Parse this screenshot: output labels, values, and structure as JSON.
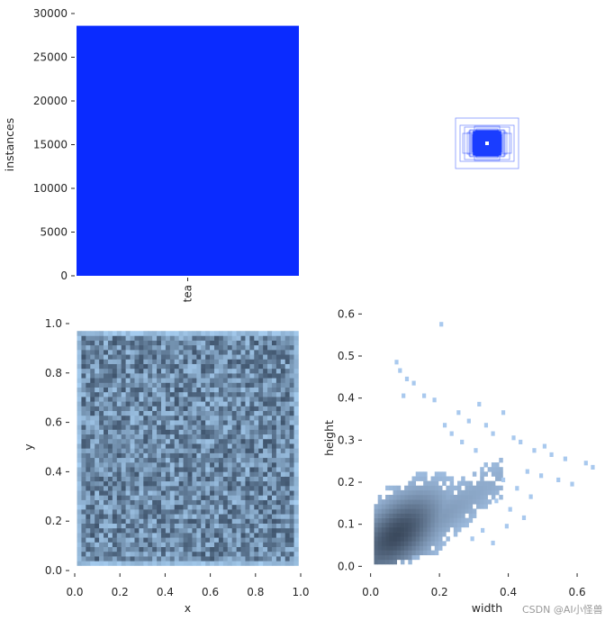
{
  "chart_data": [
    {
      "id": "instances-bar",
      "type": "bar",
      "categories": [
        "tea"
      ],
      "values": [
        28600
      ],
      "color": "#0a2bff",
      "xlabel": "",
      "ylabel": "instances",
      "ylim": [
        0,
        30000
      ],
      "yticks": [
        "0",
        "5000",
        "10000",
        "15000",
        "20000",
        "25000",
        "30000"
      ],
      "grid": false
    },
    {
      "id": "box-overlay",
      "type": "scatter",
      "title": "",
      "description_values": {
        "center": [
          0.5,
          0.5
        ]
      },
      "box_wh": [
        [
          0.06,
          0.05
        ],
        [
          0.09,
          0.07
        ],
        [
          0.12,
          0.09
        ],
        [
          0.05,
          0.08
        ],
        [
          0.1,
          0.06
        ],
        [
          0.15,
          0.11
        ],
        [
          0.08,
          0.12
        ],
        [
          0.18,
          0.1
        ],
        [
          0.07,
          0.04
        ],
        [
          0.11,
          0.14
        ],
        [
          0.13,
          0.08
        ],
        [
          0.2,
          0.14
        ],
        [
          0.09,
          0.1
        ],
        [
          0.16,
          0.07
        ],
        [
          0.25,
          0.18
        ],
        [
          0.05,
          0.05
        ],
        [
          0.14,
          0.13
        ],
        [
          0.1,
          0.09
        ],
        [
          0.22,
          0.12
        ],
        [
          0.08,
          0.06
        ],
        [
          0.3,
          0.2
        ],
        [
          0.12,
          0.16
        ],
        [
          0.17,
          0.09
        ],
        [
          0.06,
          0.1
        ],
        [
          0.19,
          0.15
        ],
        [
          0.27,
          0.11
        ],
        [
          0.11,
          0.07
        ],
        [
          0.14,
          0.19
        ],
        [
          0.35,
          0.28
        ],
        [
          0.09,
          0.13
        ]
      ],
      "color": "#1a3dff"
    },
    {
      "id": "xy-hist",
      "type": "heatmap",
      "xlabel": "x",
      "ylabel": "y",
      "xlim": [
        0,
        1
      ],
      "ylim": [
        0,
        1
      ],
      "xticks": [
        "0.0",
        "0.2",
        "0.4",
        "0.6",
        "0.8",
        "1.0"
      ],
      "yticks": [
        "0.0",
        "0.2",
        "0.4",
        "0.6",
        "0.8",
        "1.0"
      ],
      "x_range": [
        0.01,
        0.99
      ],
      "y_range": [
        0.02,
        0.97
      ],
      "bins": 50,
      "colors": {
        "low": "#a6cdf0",
        "high": "#3a4e66"
      }
    },
    {
      "id": "wh-hist",
      "type": "heatmap",
      "xlabel": "width",
      "ylabel": "height",
      "xlim": [
        -0.02,
        0.66
      ],
      "ylim": [
        -0.01,
        0.62
      ],
      "xticks": [
        "0.0",
        "0.2",
        "0.4",
        "0.6"
      ],
      "yticks": [
        "0.0",
        "0.1",
        "0.2",
        "0.3",
        "0.4",
        "0.5",
        "0.6"
      ],
      "density_peak": [
        0.07,
        0.07
      ],
      "outliers": [
        [
          0.2,
          0.57
        ],
        [
          0.07,
          0.48
        ],
        [
          0.08,
          0.46
        ],
        [
          0.1,
          0.44
        ],
        [
          0.12,
          0.43
        ],
        [
          0.09,
          0.4
        ],
        [
          0.15,
          0.4
        ],
        [
          0.18,
          0.39
        ],
        [
          0.31,
          0.38
        ],
        [
          0.25,
          0.36
        ],
        [
          0.38,
          0.36
        ],
        [
          0.28,
          0.34
        ],
        [
          0.33,
          0.33
        ],
        [
          0.35,
          0.31
        ],
        [
          0.41,
          0.3
        ],
        [
          0.43,
          0.29
        ],
        [
          0.5,
          0.28
        ],
        [
          0.47,
          0.27
        ],
        [
          0.52,
          0.26
        ],
        [
          0.56,
          0.25
        ],
        [
          0.62,
          0.24
        ],
        [
          0.64,
          0.23
        ],
        [
          0.45,
          0.22
        ],
        [
          0.49,
          0.21
        ],
        [
          0.54,
          0.2
        ],
        [
          0.58,
          0.19
        ],
        [
          0.38,
          0.2
        ],
        [
          0.42,
          0.18
        ],
        [
          0.46,
          0.16
        ],
        [
          0.36,
          0.15
        ],
        [
          0.4,
          0.13
        ],
        [
          0.44,
          0.11
        ],
        [
          0.39,
          0.09
        ],
        [
          0.32,
          0.08
        ],
        [
          0.29,
          0.06
        ],
        [
          0.35,
          0.05
        ],
        [
          0.23,
          0.31
        ],
        [
          0.26,
          0.29
        ],
        [
          0.3,
          0.27
        ],
        [
          0.21,
          0.33
        ]
      ],
      "colors": {
        "low": "#a9c9ee",
        "high": "#3b4a5e"
      }
    }
  ],
  "watermark": "CSDN @AI小怪兽"
}
